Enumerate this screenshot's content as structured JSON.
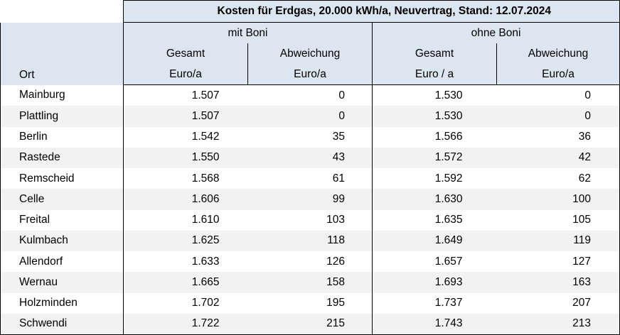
{
  "title": "Kosten für Erdgas, 20.000 kWh/a, Neuvertrag, Stand: 12.07.2024",
  "header": {
    "group_mit": "mit Boni",
    "group_ohne": "ohne Boni",
    "col_ort": "Ort",
    "mit_gesamt": "Gesamt",
    "mit_gesamt_unit": "Euro/a",
    "mit_abw": "Abweichung",
    "mit_abw_unit": "Euro/a",
    "ohne_gesamt": "Gesamt",
    "ohne_gesamt_unit": "Euro / a",
    "ohne_abw": "Abweichung",
    "ohne_abw_unit": "Euro/a"
  },
  "rows": [
    {
      "ort": "Mainburg",
      "mit_gesamt": "1.507",
      "mit_abw": "0",
      "ohne_gesamt": "1.530",
      "ohne_abw": "0"
    },
    {
      "ort": "Plattling",
      "mit_gesamt": "1.507",
      "mit_abw": "0",
      "ohne_gesamt": "1.530",
      "ohne_abw": "0"
    },
    {
      "ort": "Berlin",
      "mit_gesamt": "1.542",
      "mit_abw": "35",
      "ohne_gesamt": "1.566",
      "ohne_abw": "36"
    },
    {
      "ort": "Rastede",
      "mit_gesamt": "1.550",
      "mit_abw": "43",
      "ohne_gesamt": "1.572",
      "ohne_abw": "42"
    },
    {
      "ort": "Remscheid",
      "mit_gesamt": "1.568",
      "mit_abw": "61",
      "ohne_gesamt": "1.592",
      "ohne_abw": "62"
    },
    {
      "ort": "Celle",
      "mit_gesamt": "1.606",
      "mit_abw": "99",
      "ohne_gesamt": "1.630",
      "ohne_abw": "100"
    },
    {
      "ort": "Freital",
      "mit_gesamt": "1.610",
      "mit_abw": "103",
      "ohne_gesamt": "1.635",
      "ohne_abw": "105"
    },
    {
      "ort": "Kulmbach",
      "mit_gesamt": "1.625",
      "mit_abw": "118",
      "ohne_gesamt": "1.649",
      "ohne_abw": "119"
    },
    {
      "ort": "Allendorf",
      "mit_gesamt": "1.633",
      "mit_abw": "126",
      "ohne_gesamt": "1.657",
      "ohne_abw": "127"
    },
    {
      "ort": "Wernau",
      "mit_gesamt": "1.665",
      "mit_abw": "158",
      "ohne_gesamt": "1.693",
      "ohne_abw": "163"
    },
    {
      "ort": "Holzminden",
      "mit_gesamt": "1.702",
      "mit_abw": "195",
      "ohne_gesamt": "1.737",
      "ohne_abw": "207"
    },
    {
      "ort": "Schwendi",
      "mit_gesamt": "1.722",
      "mit_abw": "215",
      "ohne_gesamt": "1.743",
      "ohne_abw": "213"
    }
  ],
  "colors": {
    "header_bg": "#dce6f1",
    "stripe_bg": "#f2f2f2",
    "border": "#000000"
  }
}
